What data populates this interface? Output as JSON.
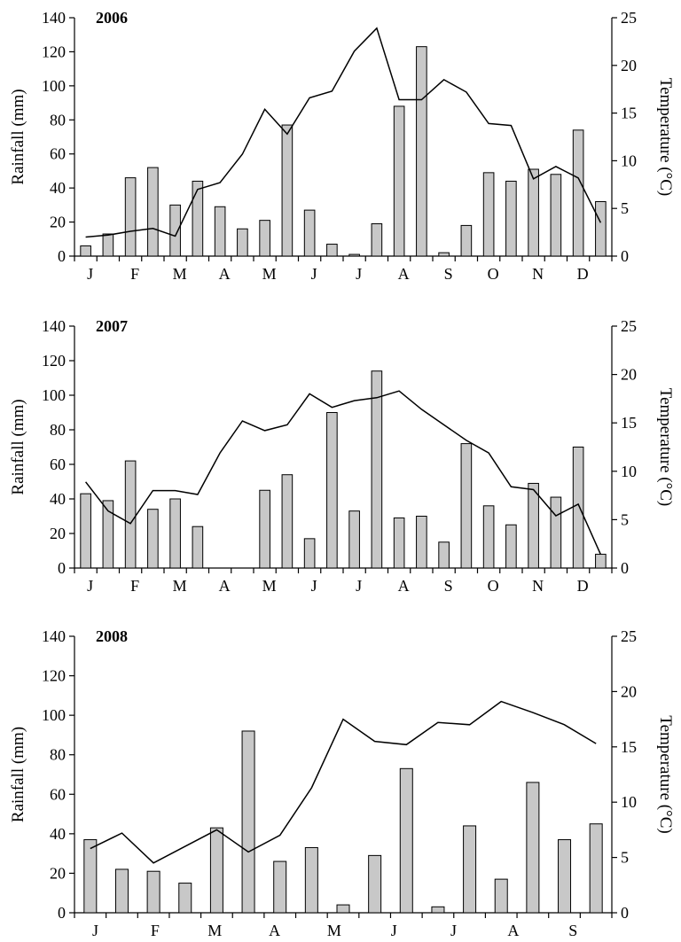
{
  "chart_data": [
    {
      "type": "bar",
      "panel": "2006",
      "title": "2006",
      "ylabel": "Rainfall (mm)",
      "y2label": "Temperature (°C)",
      "ylim": [
        0,
        140
      ],
      "yticks": [
        0,
        20,
        40,
        60,
        80,
        100,
        120,
        140
      ],
      "y2lim": [
        0,
        25
      ],
      "y2ticks": [
        0,
        5,
        10,
        15,
        20,
        25
      ],
      "month_labels": [
        "J",
        "F",
        "M",
        "A",
        "M",
        "J",
        "J",
        "A",
        "S",
        "O",
        "N",
        "D"
      ],
      "series": [
        {
          "kind": "bar",
          "values": [
            6,
            13,
            46,
            52,
            30,
            44,
            29,
            16,
            21,
            77,
            27,
            7,
            1,
            19,
            88,
            123,
            2,
            18,
            49,
            44,
            51,
            48,
            74,
            32
          ]
        },
        {
          "kind": "line",
          "values": [
            2.0,
            2.2,
            2.6,
            2.9,
            2.1,
            7.0,
            7.7,
            10.7,
            15.4,
            12.8,
            16.6,
            17.3,
            21.5,
            23.9,
            16.4,
            16.4,
            18.5,
            17.2,
            13.9,
            13.7,
            8.1,
            9.4,
            8.2,
            3.5
          ]
        }
      ]
    },
    {
      "type": "bar",
      "panel": "2007",
      "title": "2007",
      "ylabel": "Rainfall (mm)",
      "y2label": "Temperature (°C)",
      "ylim": [
        0,
        140
      ],
      "yticks": [
        0,
        20,
        40,
        60,
        80,
        100,
        120,
        140
      ],
      "y2lim": [
        0,
        25
      ],
      "y2ticks": [
        0,
        5,
        10,
        15,
        20,
        25
      ],
      "month_labels": [
        "J",
        "F",
        "M",
        "A",
        "M",
        "J",
        "J",
        "A",
        "S",
        "O",
        "N",
        "D"
      ],
      "series": [
        {
          "kind": "bar",
          "values": [
            43,
            39,
            62,
            34,
            40,
            24,
            0,
            0,
            45,
            54,
            17,
            90,
            33,
            114,
            29,
            30,
            15,
            72,
            36,
            25,
            49,
            41,
            70,
            8
          ]
        },
        {
          "kind": "line",
          "values": [
            8.9,
            5.9,
            4.6,
            8.0,
            8.0,
            7.6,
            11.9,
            15.2,
            14.2,
            14.8,
            18.0,
            16.6,
            17.3,
            17.6,
            18.3,
            16.4,
            14.8,
            13.2,
            11.9,
            8.4,
            8.1,
            5.4,
            6.6,
            1.4
          ]
        }
      ]
    },
    {
      "type": "bar",
      "panel": "2008",
      "title": "2008",
      "ylabel": "Rainfall (mm)",
      "y2label": "Temperature (°C)",
      "ylim": [
        0,
        140
      ],
      "yticks": [
        0,
        20,
        40,
        60,
        80,
        100,
        120,
        140
      ],
      "y2lim": [
        0,
        25
      ],
      "y2ticks": [
        0,
        5,
        10,
        15,
        20,
        25
      ],
      "month_labels": [
        "J",
        "F",
        "M",
        "A",
        "M",
        "J",
        "J",
        "A",
        "S"
      ],
      "series": [
        {
          "kind": "bar",
          "values": [
            37,
            22,
            21,
            15,
            43,
            92,
            26,
            33,
            4,
            29,
            73,
            3,
            44,
            17,
            66,
            37,
            45
          ]
        },
        {
          "kind": "line",
          "values": [
            5.8,
            7.2,
            4.5,
            6.0,
            7.5,
            5.5,
            7.0,
            11.3,
            17.5,
            15.5,
            15.2,
            17.2,
            17.0,
            19.1,
            18.1,
            17.0,
            15.3
          ]
        }
      ]
    }
  ]
}
